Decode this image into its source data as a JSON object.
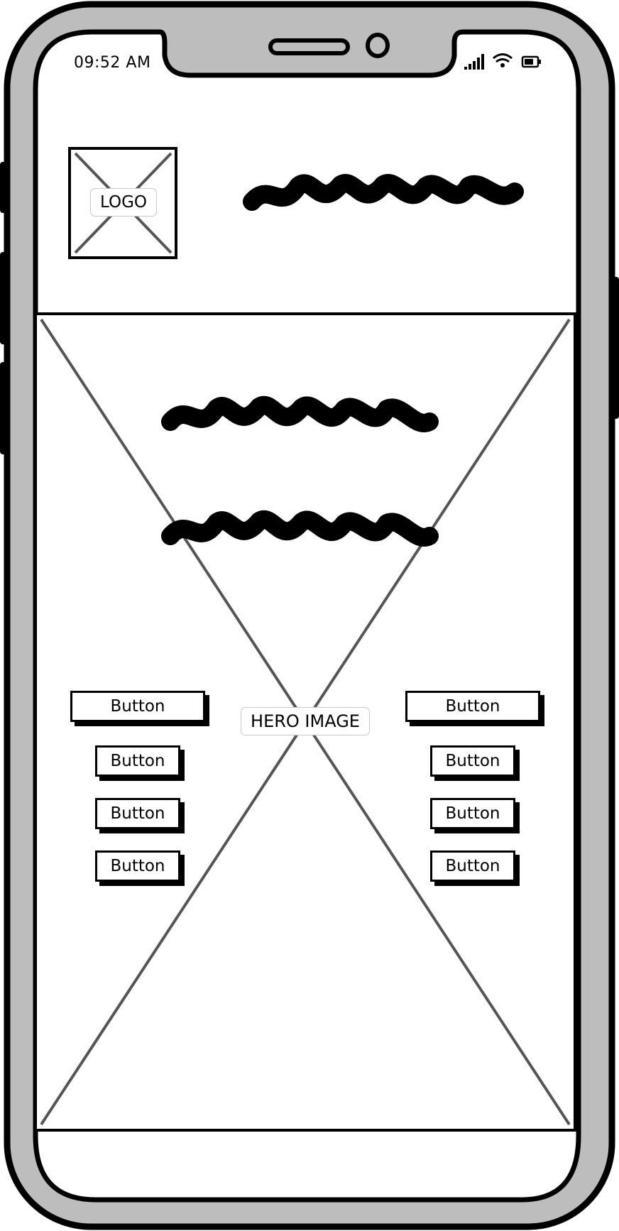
{
  "status_bar": {
    "time": "09:52 AM"
  },
  "header": {
    "logo_label": "LOGO"
  },
  "hero": {
    "image_label": "HERO IMAGE"
  },
  "buttons": {
    "left": [
      "Button",
      "Button",
      "Button",
      "Button"
    ],
    "right": [
      "Button",
      "Button",
      "Button",
      "Button"
    ]
  },
  "colors": {
    "device_body": "#bdbdbd",
    "outline": "#000000",
    "placeholder_cross": "#555555",
    "screen": "#ffffff"
  }
}
